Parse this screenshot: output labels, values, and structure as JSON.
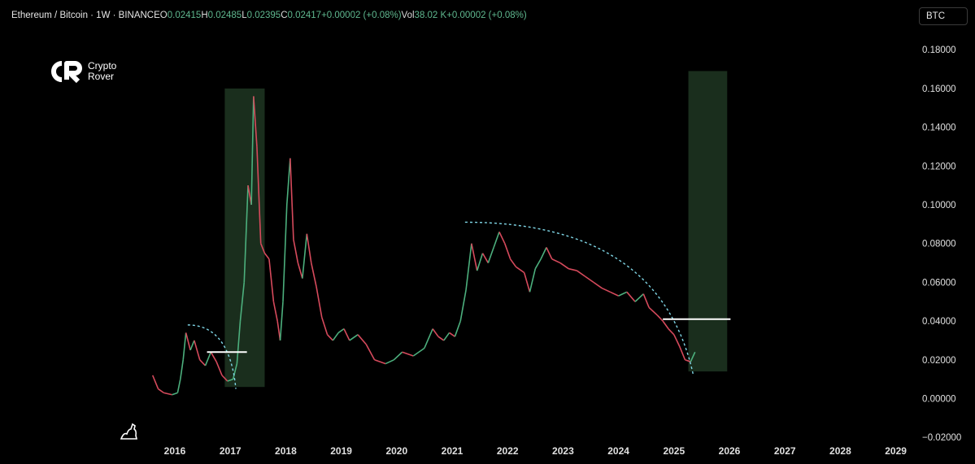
{
  "header": {
    "symbol": "Ethereum / Bitcoin · 1W · BINANCE",
    "o_label": "O",
    "o_value": "0.02415",
    "h_label": "H",
    "h_value": "0.02485",
    "l_label": "L",
    "l_value": "0.02395",
    "c_label": "C",
    "c_value": "0.02417",
    "change": "+0.00002 (+0.08%)",
    "vol_label": "Vol",
    "vol_value": "38.02 K",
    "vol_change": "+0.00002 (+0.08%)"
  },
  "currency_button": "BTC",
  "logo": {
    "line1": "Crypto",
    "line2": "Rover"
  },
  "colors": {
    "up": "#4caf7d",
    "down": "#d64a5c",
    "zone": "#1a2e1d",
    "curve": "#7fd6e6",
    "level": "#ffffff"
  },
  "chart_data": {
    "type": "line",
    "title": "",
    "xlabel": "",
    "ylabel": "",
    "ylim": [
      -0.02,
      0.19
    ],
    "xlim": [
      2015.4,
      2029.4
    ],
    "y_ticks": [
      "0.18000",
      "0.16000",
      "0.14000",
      "0.12000",
      "0.10000",
      "0.08000",
      "0.06000",
      "0.04000",
      "0.02000",
      "0.00000",
      "−0.02000"
    ],
    "y_tick_values": [
      0.18,
      0.16,
      0.14,
      0.12,
      0.1,
      0.08,
      0.06,
      0.04,
      0.02,
      0.0,
      -0.02
    ],
    "x_ticks": [
      "2016",
      "2017",
      "2018",
      "2019",
      "2020",
      "2021",
      "2022",
      "2023",
      "2024",
      "2025",
      "2026",
      "2027",
      "2028",
      "2029"
    ],
    "x_tick_values": [
      2016,
      2017,
      2018,
      2019,
      2020,
      2021,
      2022,
      2023,
      2024,
      2025,
      2026,
      2027,
      2028,
      2029
    ],
    "series": [
      {
        "points": [
          [
            2015.6,
            0.012
          ],
          [
            2015.7,
            0.005
          ],
          [
            2015.8,
            0.003
          ],
          [
            2015.95,
            0.002
          ],
          [
            2016.05,
            0.003
          ],
          [
            2016.1,
            0.01
          ],
          [
            2016.15,
            0.02
          ],
          [
            2016.2,
            0.034
          ],
          [
            2016.28,
            0.025
          ],
          [
            2016.35,
            0.03
          ],
          [
            2016.45,
            0.02
          ],
          [
            2016.55,
            0.017
          ],
          [
            2016.65,
            0.024
          ],
          [
            2016.75,
            0.019
          ],
          [
            2016.85,
            0.012
          ],
          [
            2016.95,
            0.009
          ],
          [
            2017.05,
            0.01
          ],
          [
            2017.12,
            0.018
          ],
          [
            2017.18,
            0.04
          ],
          [
            2017.25,
            0.06
          ],
          [
            2017.32,
            0.11
          ],
          [
            2017.38,
            0.1
          ],
          [
            2017.42,
            0.156
          ],
          [
            2017.48,
            0.13
          ],
          [
            2017.55,
            0.08
          ],
          [
            2017.62,
            0.075
          ],
          [
            2017.7,
            0.072
          ],
          [
            2017.78,
            0.05
          ],
          [
            2017.85,
            0.04
          ],
          [
            2017.9,
            0.03
          ],
          [
            2017.95,
            0.05
          ],
          [
            2018.02,
            0.1
          ],
          [
            2018.08,
            0.124
          ],
          [
            2018.14,
            0.082
          ],
          [
            2018.22,
            0.07
          ],
          [
            2018.3,
            0.062
          ],
          [
            2018.38,
            0.085
          ],
          [
            2018.46,
            0.07
          ],
          [
            2018.55,
            0.058
          ],
          [
            2018.65,
            0.042
          ],
          [
            2018.75,
            0.033
          ],
          [
            2018.85,
            0.03
          ],
          [
            2018.95,
            0.034
          ],
          [
            2019.05,
            0.036
          ],
          [
            2019.15,
            0.03
          ],
          [
            2019.3,
            0.033
          ],
          [
            2019.45,
            0.028
          ],
          [
            2019.6,
            0.02
          ],
          [
            2019.8,
            0.018
          ],
          [
            2019.95,
            0.02
          ],
          [
            2020.1,
            0.024
          ],
          [
            2020.3,
            0.022
          ],
          [
            2020.5,
            0.026
          ],
          [
            2020.65,
            0.036
          ],
          [
            2020.75,
            0.032
          ],
          [
            2020.85,
            0.03
          ],
          [
            2020.95,
            0.034
          ],
          [
            2021.05,
            0.032
          ],
          [
            2021.15,
            0.04
          ],
          [
            2021.25,
            0.056
          ],
          [
            2021.35,
            0.08
          ],
          [
            2021.45,
            0.066
          ],
          [
            2021.55,
            0.075
          ],
          [
            2021.65,
            0.07
          ],
          [
            2021.75,
            0.078
          ],
          [
            2021.85,
            0.086
          ],
          [
            2021.95,
            0.08
          ],
          [
            2022.05,
            0.072
          ],
          [
            2022.15,
            0.068
          ],
          [
            2022.3,
            0.065
          ],
          [
            2022.4,
            0.055
          ],
          [
            2022.5,
            0.067
          ],
          [
            2022.6,
            0.072
          ],
          [
            2022.7,
            0.078
          ],
          [
            2022.8,
            0.072
          ],
          [
            2022.95,
            0.07
          ],
          [
            2023.1,
            0.067
          ],
          [
            2023.25,
            0.066
          ],
          [
            2023.4,
            0.063
          ],
          [
            2023.55,
            0.06
          ],
          [
            2023.7,
            0.057
          ],
          [
            2023.85,
            0.055
          ],
          [
            2024.0,
            0.053
          ],
          [
            2024.15,
            0.055
          ],
          [
            2024.3,
            0.05
          ],
          [
            2024.45,
            0.054
          ],
          [
            2024.55,
            0.047
          ],
          [
            2024.7,
            0.043
          ],
          [
            2024.8,
            0.04
          ],
          [
            2024.9,
            0.036
          ],
          [
            2025.0,
            0.033
          ],
          [
            2025.1,
            0.027
          ],
          [
            2025.2,
            0.02
          ],
          [
            2025.3,
            0.019
          ],
          [
            2025.38,
            0.024
          ]
        ]
      }
    ],
    "zones": [
      {
        "x0": 2016.9,
        "x1": 2017.62,
        "y0": 0.006,
        "y1": 0.16
      },
      {
        "x0": 2025.26,
        "x1": 2025.96,
        "y0": 0.014,
        "y1": 0.169
      }
    ],
    "levels": [
      {
        "x0": 2016.58,
        "x1": 2017.3,
        "y": 0.024
      },
      {
        "x0": 2024.8,
        "x1": 2026.02,
        "y": 0.041
      }
    ],
    "arcs": [
      {
        "x0": 2016.45,
        "x1": 2017.1,
        "peak_x": 2016.35,
        "peak_y": 0.038,
        "end_y": 0.005
      },
      {
        "x0": 2021.35,
        "x1": 2025.35,
        "peak_x": 2021.35,
        "peak_y": 0.091,
        "end_y": 0.012
      }
    ]
  }
}
